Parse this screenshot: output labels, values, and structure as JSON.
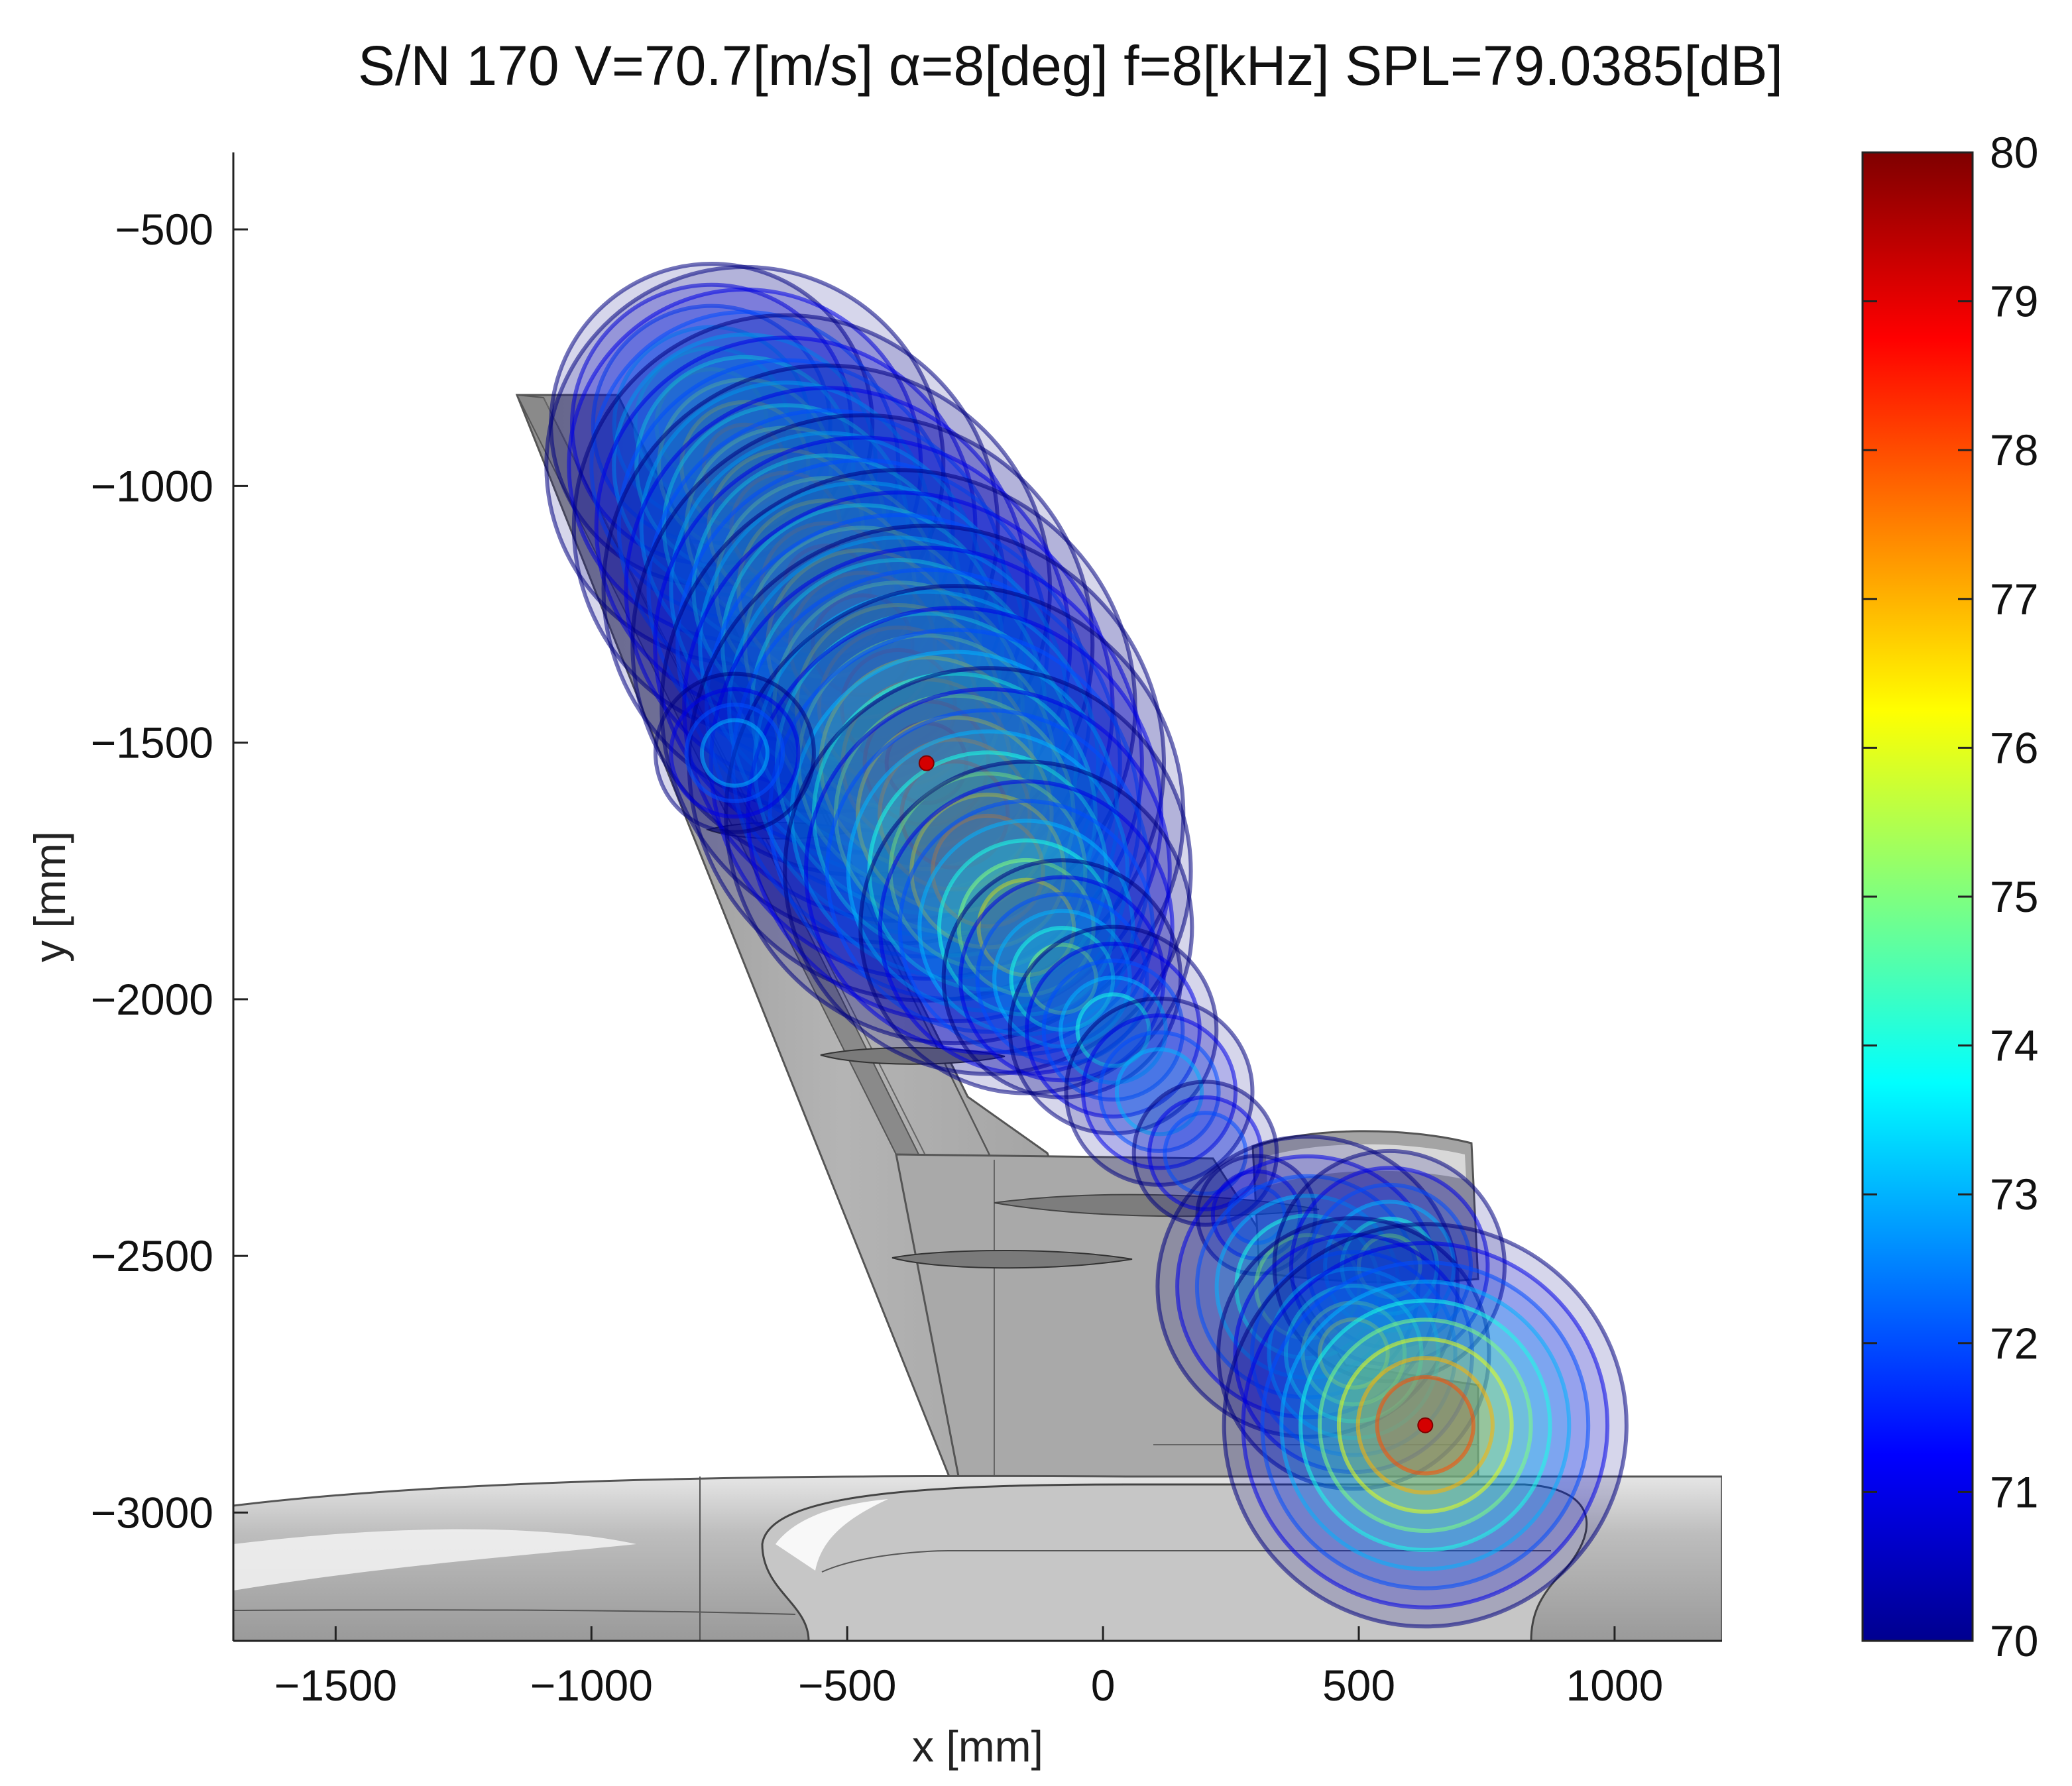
{
  "chart_data": {
    "type": "heatmap",
    "title": "S/N 170  V=70.7[m/s]   α=8[deg]   f=8[kHz]     SPL=79.0385[dB]",
    "xlabel": "x [mm]",
    "ylabel": "y [mm]",
    "xlim": [
      -1700,
      1210
    ],
    "ylim": [
      -3250,
      -350
    ],
    "y_reversed": true,
    "x_ticks": [
      -1500,
      -1000,
      -500,
      0,
      500,
      1000
    ],
    "y_ticks": [
      -500,
      -1000,
      -1500,
      -2000,
      -2500,
      -3000
    ],
    "x_tick_labels": [
      "−1500",
      "−1000",
      "−500",
      "0",
      "500",
      "1000"
    ],
    "y_tick_labels": [
      "−500",
      "−1000",
      "−1500",
      "−2000",
      "−2500",
      "−3000"
    ],
    "colorbar": {
      "min": 70,
      "max": 80,
      "ticks": [
        70,
        71,
        72,
        73,
        74,
        75,
        76,
        77,
        78,
        79,
        80
      ],
      "tick_labels": [
        "70",
        "71",
        "72",
        "73",
        "74",
        "75",
        "76",
        "77",
        "78",
        "79",
        "80"
      ],
      "colormap": "jet"
    },
    "peaks": [
      {
        "x": -345,
        "y": -1540,
        "spl": 79.0
      },
      {
        "x": 630,
        "y": -2830,
        "spl": 78.7
      }
    ],
    "sources": [
      {
        "x": -765,
        "y": -880,
        "spl": 75.8,
        "spread": 75
      },
      {
        "x": -700,
        "y": -960,
        "spl": 77.0,
        "spread": 80
      },
      {
        "x": -620,
        "y": -1080,
        "spl": 77.6,
        "spread": 80
      },
      {
        "x": -540,
        "y": -1200,
        "spl": 78.1,
        "spread": 80
      },
      {
        "x": -470,
        "y": -1310,
        "spl": 78.4,
        "spread": 80
      },
      {
        "x": -400,
        "y": -1430,
        "spl": 78.7,
        "spread": 80
      },
      {
        "x": -345,
        "y": -1540,
        "spl": 79.0,
        "spread": 78
      },
      {
        "x": -290,
        "y": -1640,
        "spl": 78.6,
        "spread": 78
      },
      {
        "x": -225,
        "y": -1750,
        "spl": 77.8,
        "spread": 75
      },
      {
        "x": -150,
        "y": -1860,
        "spl": 76.6,
        "spread": 70
      },
      {
        "x": -80,
        "y": -1960,
        "spl": 75.2,
        "spread": 60
      },
      {
        "x": 20,
        "y": -2060,
        "spl": 74.3,
        "spread": 60
      },
      {
        "x": 110,
        "y": -2180,
        "spl": 73.7,
        "spread": 60
      },
      {
        "x": 200,
        "y": -2300,
        "spl": 72.8,
        "spread": 55
      },
      {
        "x": 300,
        "y": -2420,
        "spl": 72.0,
        "spread": 55
      },
      {
        "x": 400,
        "y": -2560,
        "spl": 75.8,
        "spread": 70
      },
      {
        "x": 560,
        "y": -2520,
        "spl": 75.0,
        "spread": 60
      },
      {
        "x": 490,
        "y": -2690,
        "spl": 76.2,
        "spread": 60
      },
      {
        "x": 630,
        "y": -2830,
        "spl": 78.7,
        "spread": 68
      },
      {
        "x": -720,
        "y": -1520,
        "spl": 73.3,
        "spread": 55
      }
    ],
    "colors": {
      "geometry_fill": "#b9b9b9",
      "geometry_edge": "#444444"
    }
  }
}
